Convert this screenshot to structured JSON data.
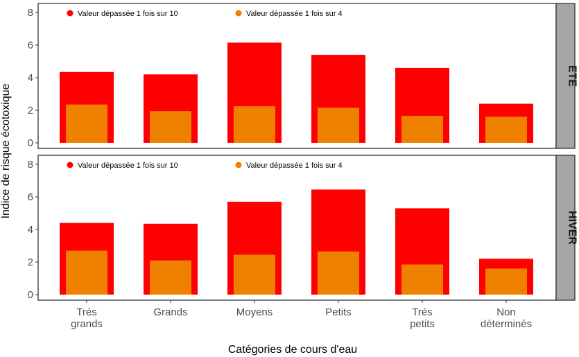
{
  "chart_data": {
    "type": "bar",
    "xlabel": "Catégories de cours d'eau",
    "ylabel": "Indice de risque écotoxique",
    "ylim": [
      0,
      8
    ],
    "yticks": [
      0,
      2,
      4,
      6,
      8
    ],
    "categories": [
      [
        "Trés",
        "grands"
      ],
      [
        "Grands"
      ],
      [
        "Moyens"
      ],
      [
        "Petits"
      ],
      [
        "Trés",
        "petits"
      ],
      [
        "Non",
        "déterminés"
      ]
    ],
    "legend_position": "top-left (inside each panel)",
    "grid": false,
    "panels": [
      {
        "strip": "ETE",
        "series": [
          {
            "name": "Valeur dépassée 1 fois sur 10",
            "color": "#ff0000",
            "values": [
              4.35,
              4.2,
              6.15,
              5.4,
              4.6,
              2.4
            ]
          },
          {
            "name": "Valeur dépassée 1 fois sur 4",
            "color": "#f08000",
            "values": [
              2.35,
              1.95,
              2.25,
              2.15,
              1.65,
              1.6
            ]
          }
        ]
      },
      {
        "strip": "HIVER",
        "series": [
          {
            "name": "Valeur dépassée 1 fois sur 10",
            "color": "#ff0000",
            "values": [
              4.4,
              4.35,
              5.7,
              6.45,
              5.3,
              2.2
            ]
          },
          {
            "name": "Valeur dépassée 1 fois sur 4",
            "color": "#f08000",
            "values": [
              2.7,
              2.1,
              2.45,
              2.65,
              1.85,
              1.6
            ]
          }
        ]
      }
    ]
  }
}
